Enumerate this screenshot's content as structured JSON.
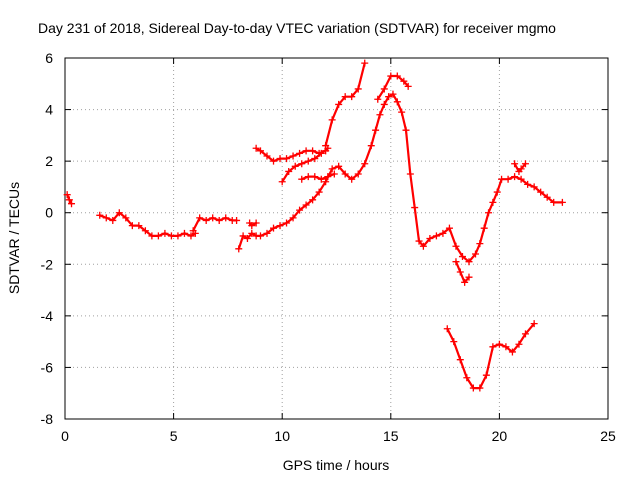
{
  "chart_data": {
    "type": "line",
    "title": "Day 231 of 2018, Sidereal Day-to-day VTEC variation (SDTVAR) for receiver mgmo",
    "xlabel": "GPS time / hours",
    "ylabel": "SDTVAR / TECUs",
    "xlim": [
      0,
      25
    ],
    "ylim": [
      -8,
      6
    ],
    "xticks": [
      "0",
      "5",
      "10",
      "15",
      "20",
      "25"
    ],
    "yticks": [
      "-8",
      "-6",
      "-4",
      "-2",
      "0",
      "2",
      "4",
      "6"
    ],
    "grid": true,
    "marker": "plus",
    "series_color": "#ff0000",
    "series": [
      {
        "x": [
          0.1,
          0.2,
          0.3
        ],
        "y": [
          0.7,
          0.5,
          0.35
        ]
      },
      {
        "x": [
          1.6,
          1.9,
          2.2,
          2.5,
          2.8,
          3.1,
          3.4,
          3.7,
          4.0,
          4.3,
          4.6,
          4.9,
          5.2,
          5.5,
          5.8,
          6.0
        ],
        "y": [
          -0.1,
          -0.2,
          -0.3,
          0.0,
          -0.2,
          -0.5,
          -0.5,
          -0.7,
          -0.9,
          -0.9,
          -0.8,
          -0.9,
          -0.9,
          -0.8,
          -0.9,
          -0.8
        ]
      },
      {
        "x": [
          5.9,
          6.2,
          6.5,
          6.8,
          7.1,
          7.4,
          7.7,
          7.9
        ],
        "y": [
          -0.7,
          -0.2,
          -0.3,
          -0.2,
          -0.3,
          -0.2,
          -0.3,
          -0.3
        ]
      },
      {
        "x": [
          8.0,
          8.2,
          8.4,
          8.6,
          8.8,
          9.0,
          9.3,
          9.6,
          9.9,
          10.2,
          10.5,
          10.8,
          11.1,
          11.4,
          11.7,
          12.0,
          12.3,
          12.6,
          12.9,
          13.2,
          13.5,
          13.8,
          14.1,
          14.3,
          14.5,
          14.7,
          14.9,
          15.1,
          15.3,
          15.5,
          15.7,
          15.9,
          16.1,
          16.3,
          16.5,
          16.8,
          17.1,
          17.4,
          17.7,
          18.0,
          18.3,
          18.6,
          18.9,
          19.1,
          19.3,
          19.5,
          19.7,
          19.9,
          20.1,
          20.4,
          20.7,
          21.0,
          21.3,
          21.6,
          21.9,
          22.2,
          22.5,
          22.9
        ],
        "y": [
          -1.4,
          -0.9,
          -1.0,
          -0.8,
          -0.9,
          -0.9,
          -0.8,
          -0.6,
          -0.5,
          -0.4,
          -0.2,
          0.1,
          0.3,
          0.5,
          0.8,
          1.2,
          1.7,
          1.8,
          1.5,
          1.3,
          1.5,
          1.9,
          2.6,
          3.2,
          3.8,
          4.2,
          4.5,
          4.6,
          4.3,
          3.9,
          3.2,
          1.5,
          0.2,
          -1.1,
          -1.3,
          -1.0,
          -0.9,
          -0.8,
          -0.6,
          -1.3,
          -1.7,
          -1.9,
          -1.6,
          -1.2,
          -0.6,
          0.0,
          0.4,
          0.8,
          1.3,
          1.3,
          1.4,
          1.3,
          1.1,
          1.0,
          0.8,
          0.6,
          0.4,
          0.4
        ]
      },
      {
        "x": [
          8.5,
          8.6,
          8.8
        ],
        "y": [
          -0.4,
          -0.5,
          -0.4
        ]
      },
      {
        "x": [
          8.8,
          9.0,
          9.3,
          9.6,
          9.9,
          10.2,
          10.5,
          10.8,
          11.1,
          11.4,
          11.7,
          12.0
        ],
        "y": [
          2.5,
          2.4,
          2.2,
          2.0,
          2.1,
          2.1,
          2.2,
          2.3,
          2.4,
          2.4,
          2.3,
          2.4
        ]
      },
      {
        "x": [
          10.0,
          10.3,
          10.6,
          10.9,
          11.2,
          11.5,
          11.8,
          12.1
        ],
        "y": [
          1.2,
          1.6,
          1.8,
          1.9,
          2.0,
          2.1,
          2.3,
          2.5
        ]
      },
      {
        "x": [
          10.9,
          11.2,
          11.5,
          11.8,
          12.1,
          12.4
        ],
        "y": [
          1.3,
          1.4,
          1.4,
          1.3,
          1.4,
          1.5
        ]
      },
      {
        "x": [
          12.0,
          12.3,
          12.6,
          12.9,
          13.2,
          13.5,
          13.8
        ],
        "y": [
          2.6,
          3.6,
          4.2,
          4.5,
          4.5,
          4.8,
          5.8
        ]
      },
      {
        "x": [
          14.4,
          14.7,
          15.0,
          15.3,
          15.6,
          15.8
        ],
        "y": [
          4.4,
          4.8,
          5.3,
          5.3,
          5.1,
          4.9
        ]
      },
      {
        "x": [
          18.0,
          18.2,
          18.4,
          18.6
        ],
        "y": [
          -1.9,
          -2.3,
          -2.7,
          -2.5
        ]
      },
      {
        "x": [
          20.7,
          20.9,
          21.0,
          21.2
        ],
        "y": [
          1.9,
          1.6,
          1.7,
          1.9
        ]
      },
      {
        "x": [
          17.6,
          17.9,
          18.2,
          18.5,
          18.8,
          19.1,
          19.4,
          19.7,
          20.0,
          20.3,
          20.6,
          20.9,
          21.2,
          21.6
        ],
        "y": [
          -4.5,
          -5.0,
          -5.7,
          -6.4,
          -6.8,
          -6.8,
          -6.3,
          -5.2,
          -5.1,
          -5.2,
          -5.4,
          -5.1,
          -4.7,
          -4.3
        ]
      }
    ]
  }
}
